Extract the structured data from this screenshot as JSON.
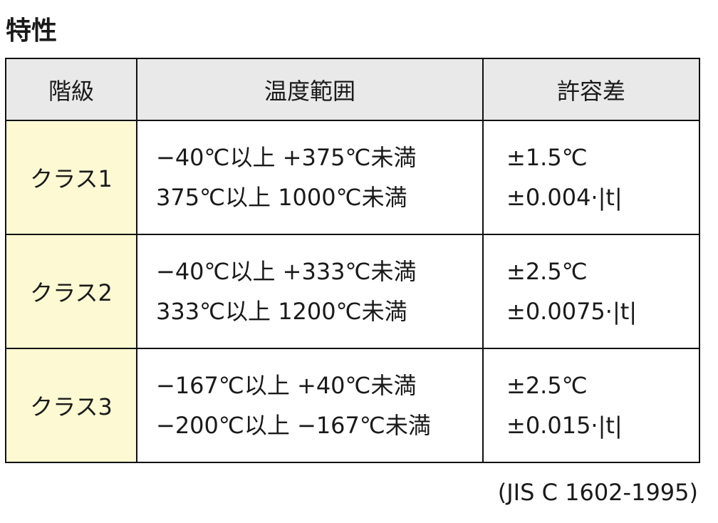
{
  "title": "特性",
  "table": {
    "headers": [
      "階級",
      "温度範囲",
      "許容差"
    ],
    "rows": [
      {
        "class": "クラス1",
        "ranges": [
          "−40℃以上 +375℃未満",
          "375℃以上 1000℃未満"
        ],
        "tolerances": [
          "±1.5℃",
          "±0.004·|t|"
        ]
      },
      {
        "class": "クラス2",
        "ranges": [
          "−40℃以上 +333℃未満",
          "333℃以上 1200℃未満"
        ],
        "tolerances": [
          "±2.5℃",
          "±0.0075·|t|"
        ]
      },
      {
        "class": "クラス3",
        "ranges": [
          "−167℃以上 +40℃未満",
          "−200℃以上 −167℃未満"
        ],
        "tolerances": [
          "±2.5℃",
          "±0.015·|t|"
        ]
      }
    ]
  },
  "source": "(JIS C 1602-1995)",
  "colors": {
    "header_bg": "#e9e9e9",
    "class_bg": "#fdf9d3"
  }
}
